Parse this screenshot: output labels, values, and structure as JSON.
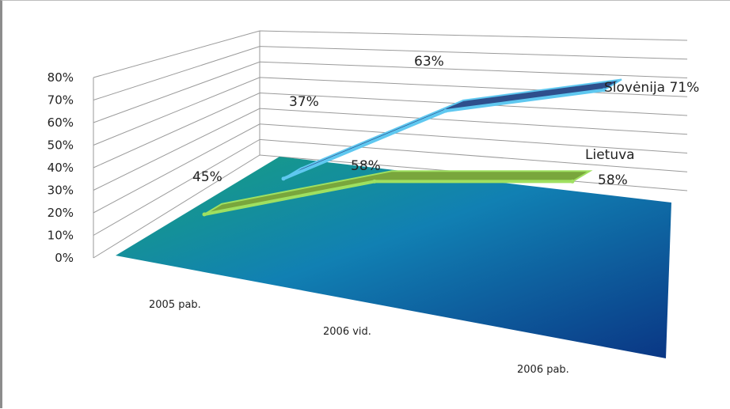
{
  "chart_data": {
    "type": "3d-area",
    "title": "",
    "xlabel": "",
    "ylabel": "",
    "categories": [
      "2005 pab.",
      "2006 vid.",
      "2006 pab."
    ],
    "y_ticks": [
      "0%",
      "10%",
      "20%",
      "30%",
      "40%",
      "50%",
      "60%",
      "70%",
      "80%"
    ],
    "ylim": [
      0,
      80
    ],
    "grid": true,
    "legend": "none",
    "series": [
      {
        "name": "Lietuva",
        "values": [
          45,
          58,
          58
        ],
        "value_labels": [
          "45%",
          "58%",
          "58%"
        ],
        "color": "#7fbf3f"
      },
      {
        "name": "Slovėnija",
        "values": [
          37,
          63,
          71
        ],
        "value_labels": [
          "37%",
          "63%",
          "71%"
        ],
        "color": "#2f4f8f"
      }
    ],
    "floor_colors": [
      "#1aa37f",
      "#0a3a8a"
    ]
  }
}
